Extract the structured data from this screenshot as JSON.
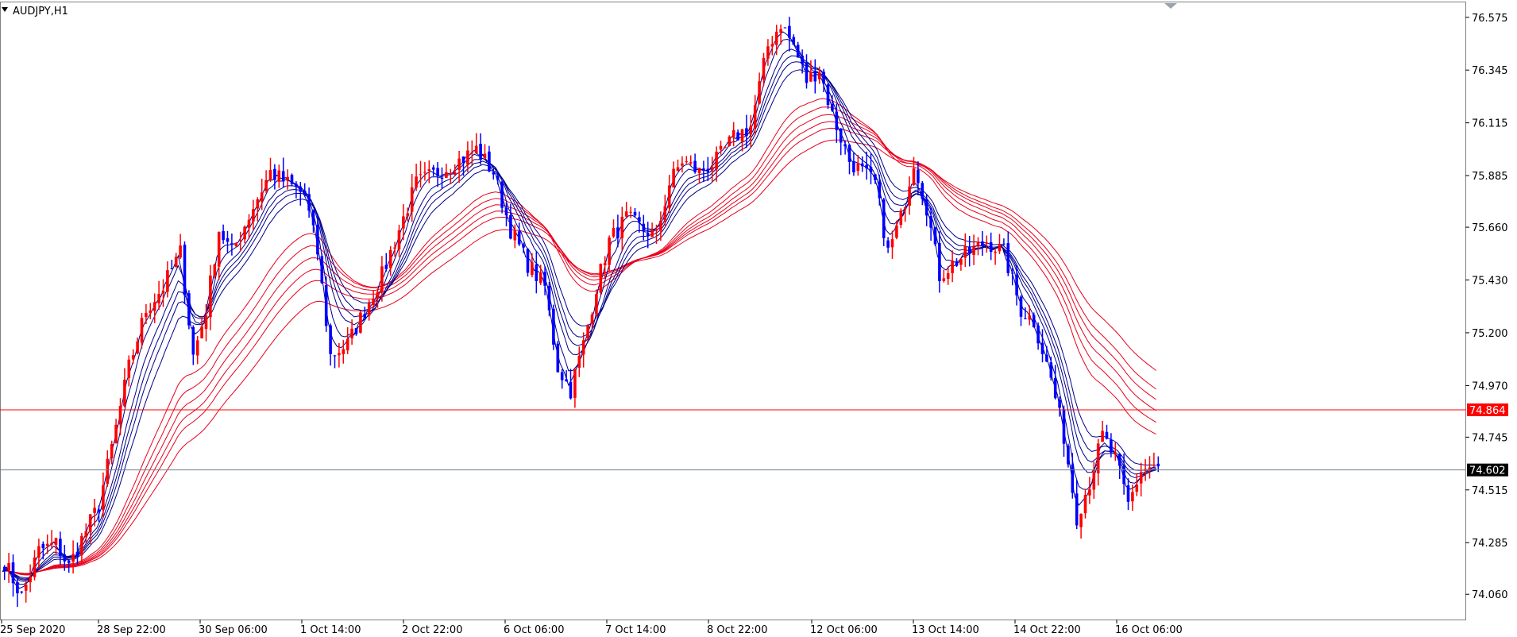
{
  "chart_data": {
    "type": "candlestick",
    "title": "AUDJPY,H1",
    "colors": {
      "bull": "#ff0000",
      "bear": "#0000ff",
      "fast_ma": "#00008b",
      "slow_ma": "#e8001c",
      "hline_red": "#ff0000",
      "hline_price": "#708090",
      "tag_red_bg": "#ff0000",
      "tag_black_bg": "#000000"
    },
    "ylim": [
      73.95,
      76.64
    ],
    "y_ticks": [
      "76.575",
      "76.345",
      "76.115",
      "75.885",
      "75.660",
      "75.430",
      "75.200",
      "74.970",
      "74.745",
      "74.515",
      "74.285",
      "74.060"
    ],
    "x_tick_labels": [
      "25 Sep 2020",
      "28 Sep 22:00",
      "30 Sep 06:00",
      "1 Oct 14:00",
      "2 Oct 22:00",
      "6 Oct 06:00",
      "7 Oct 14:00",
      "8 Oct 22:00",
      "12 Oct 06:00",
      "13 Oct 14:00",
      "14 Oct 22:00",
      "16 Oct 06:00"
    ],
    "horizontal_line": {
      "price": "74.864",
      "value": 74.864
    },
    "current_price": {
      "price": "74.602",
      "value": 74.602
    },
    "bar_count": 270,
    "price_path": [
      [
        0,
        74.2
      ],
      [
        4,
        74.05
      ],
      [
        8,
        74.25
      ],
      [
        12,
        74.28
      ],
      [
        15,
        74.18
      ],
      [
        18,
        74.3
      ],
      [
        22,
        74.45
      ],
      [
        25,
        74.7
      ],
      [
        29,
        75.05
      ],
      [
        33,
        75.3
      ],
      [
        37,
        75.4
      ],
      [
        41,
        75.55
      ],
      [
        44,
        75.1
      ],
      [
        47,
        75.3
      ],
      [
        50,
        75.65
      ],
      [
        53,
        75.55
      ],
      [
        58,
        75.75
      ],
      [
        62,
        75.9
      ],
      [
        66,
        75.85
      ],
      [
        70,
        75.8
      ],
      [
        73,
        75.55
      ],
      [
        76,
        75.1
      ],
      [
        80,
        75.15
      ],
      [
        84,
        75.3
      ],
      [
        88,
        75.45
      ],
      [
        92,
        75.65
      ],
      [
        96,
        75.85
      ],
      [
        101,
        75.9
      ],
      [
        106,
        75.95
      ],
      [
        110,
        76.0
      ],
      [
        114,
        75.9
      ],
      [
        118,
        75.65
      ],
      [
        122,
        75.5
      ],
      [
        126,
        75.4
      ],
      [
        129,
        75.05
      ],
      [
        132,
        74.95
      ],
      [
        135,
        75.15
      ],
      [
        138,
        75.4
      ],
      [
        141,
        75.6
      ],
      [
        145,
        75.7
      ],
      [
        149,
        75.65
      ],
      [
        152,
        75.62
      ],
      [
        155,
        75.85
      ],
      [
        158,
        75.95
      ],
      [
        162,
        75.9
      ],
      [
        166,
        75.95
      ],
      [
        170,
        76.05
      ],
      [
        174,
        76.1
      ],
      [
        178,
        76.45
      ],
      [
        181,
        76.55
      ],
      [
        184,
        76.45
      ],
      [
        187,
        76.3
      ],
      [
        190,
        76.35
      ],
      [
        193,
        76.15
      ],
      [
        197,
        75.95
      ],
      [
        200,
        75.9
      ],
      [
        203,
        75.85
      ],
      [
        206,
        75.55
      ],
      [
        209,
        75.7
      ],
      [
        212,
        75.95
      ],
      [
        215,
        75.75
      ],
      [
        218,
        75.45
      ],
      [
        221,
        75.5
      ],
      [
        225,
        75.55
      ],
      [
        229,
        75.6
      ],
      [
        233,
        75.55
      ],
      [
        237,
        75.3
      ],
      [
        240,
        75.25
      ],
      [
        244,
        75.0
      ],
      [
        247,
        74.75
      ],
      [
        250,
        74.4
      ],
      [
        253,
        74.55
      ],
      [
        256,
        74.75
      ],
      [
        259,
        74.65
      ],
      [
        262,
        74.45
      ],
      [
        265,
        74.6
      ],
      [
        268,
        74.62
      ],
      [
        269,
        74.6
      ]
    ]
  }
}
